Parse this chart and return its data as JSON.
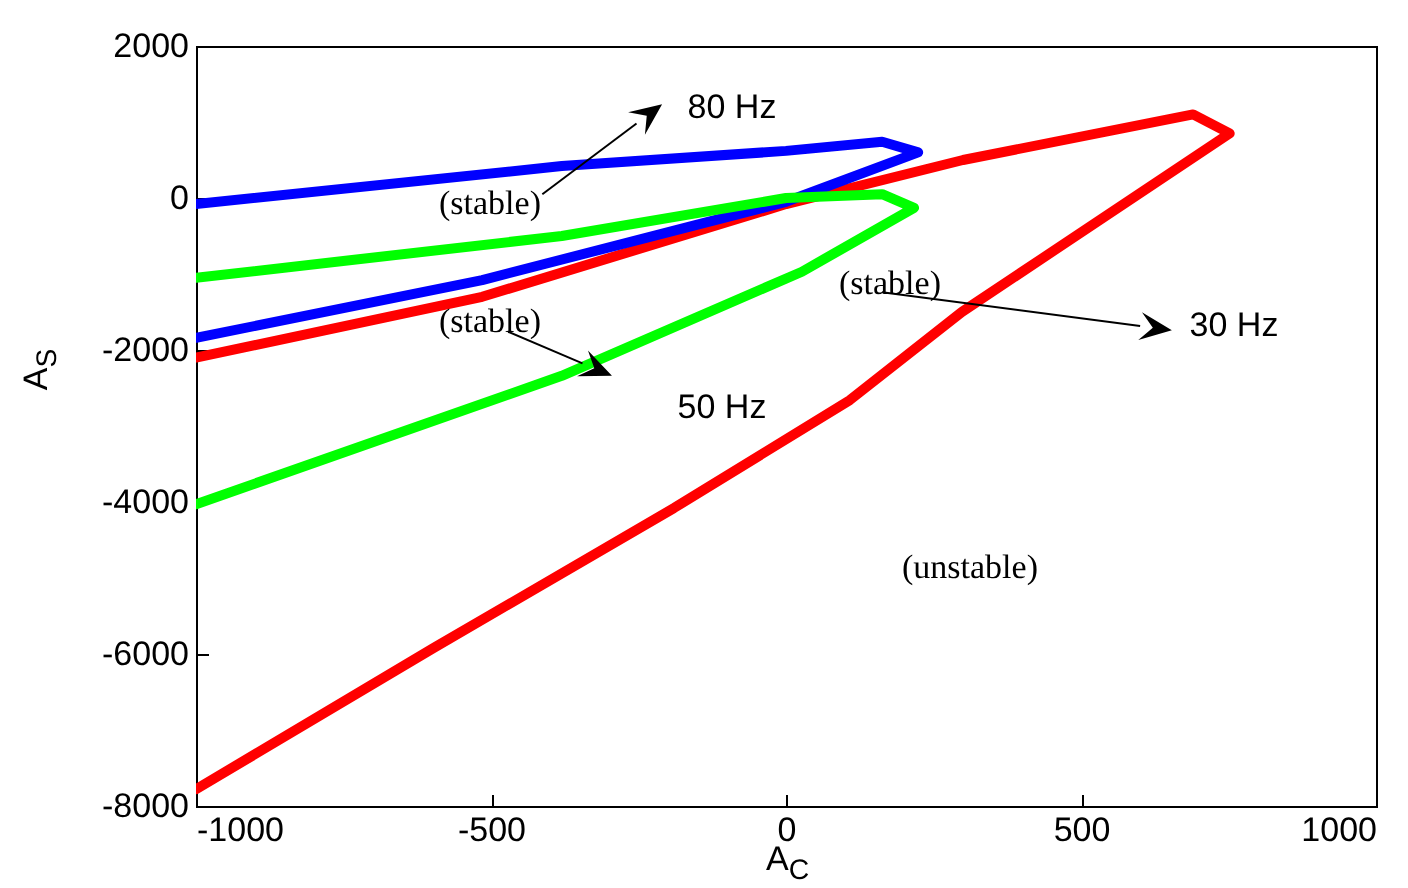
{
  "chart_data": {
    "type": "line",
    "xlabel": "A$_{C}$",
    "ylabel": "A$_{S}$",
    "xlim": [
      -1000,
      1000
    ],
    "ylim": [
      -8000,
      2000
    ],
    "xticks": [
      -1000,
      -500,
      0,
      500,
      1000
    ],
    "yticks": [
      -8000,
      -6000,
      -4000,
      -2000,
      0,
      2000
    ],
    "grid": false,
    "marker": "none",
    "line_style": "solid",
    "series": [
      {
        "color": "#ff0000",
        "x": [
          -1000,
          -515,
          0,
          300,
          690,
          752,
          298,
          108,
          -190,
          -597,
          -1000
        ],
        "values": [
          -2100,
          -1300,
          -80,
          500,
          1100,
          850,
          -1500,
          -2660,
          -4080,
          -5920,
          -7780
        ]
      },
      {
        "color": "#0000ff",
        "x": [
          -1000,
          -380,
          0,
          163,
          224,
          0,
          -515,
          -1000
        ],
        "values": [
          -80,
          420,
          620,
          740,
          600,
          -50,
          -1080,
          -1840
        ]
      },
      {
        "color": "#00ff00",
        "x": [
          -1000,
          -380,
          0,
          163,
          217,
          27,
          -380,
          -1000
        ],
        "values": [
          -1050,
          -500,
          0,
          50,
          -130,
          -970,
          -2340,
          -4030
        ]
      }
    ],
    "annotations": [
      "80 Hz",
      "(stable)",
      "(stable)",
      "50 Hz",
      "(stable)",
      "30 Hz",
      "(unstable)"
    ]
  }
}
